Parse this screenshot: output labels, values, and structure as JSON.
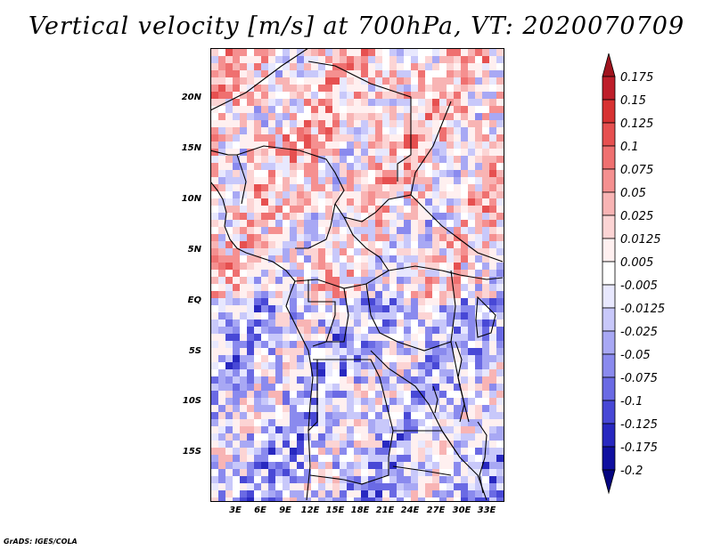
{
  "title": "Vertical velocity [m/s] at 700hPa, VT: 2020070709",
  "lat_labels": [
    "20N",
    "15N",
    "10N",
    "5N",
    "EQ",
    "5S",
    "10S",
    "15S"
  ],
  "lon_labels": [
    "3E",
    "6E",
    "9E",
    "12E",
    "15E",
    "18E",
    "21E",
    "24E",
    "27E",
    "30E",
    "33E"
  ],
  "colorbar": {
    "labels": [
      "0.175",
      "0.15",
      "0.125",
      "0.1",
      "0.075",
      "0.05",
      "0.025",
      "0.0125",
      "0.005",
      "-0.005",
      "-0.0125",
      "-0.025",
      "-0.05",
      "-0.075",
      "-0.1",
      "-0.125",
      "-0.175",
      "-0.2"
    ],
    "colors": [
      "#a0141e",
      "#be1e2a",
      "#d73232",
      "#e65050",
      "#ef7070",
      "#f59090",
      "#f8b4b4",
      "#fcd4d4",
      "#fff0f0",
      "#ffffff",
      "#e8e8fe",
      "#c8c8fa",
      "#a8a8f4",
      "#8a8aee",
      "#6a6ae4",
      "#4848d6",
      "#2828c0",
      "#1010a0",
      "#050580"
    ]
  },
  "credit": "GrADS: IGES/COLA"
}
